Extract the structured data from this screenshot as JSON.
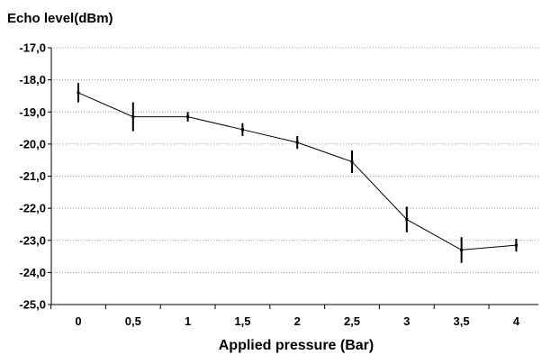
{
  "chart_data": {
    "type": "line",
    "title": "",
    "ylabel": "Echo level(dBm)",
    "xlabel": "Applied pressure (Bar)",
    "x": [
      0,
      0.5,
      1,
      1.5,
      2,
      2.5,
      3,
      3.5,
      4
    ],
    "x_tick_labels": [
      "0",
      "0,5",
      "1",
      "1,5",
      "2",
      "2,5",
      "3",
      "3,5",
      "4"
    ],
    "ylim": [
      -25,
      -17
    ],
    "y_ticks": [
      -17,
      -18,
      -19,
      -20,
      -21,
      -22,
      -23,
      -24,
      -25
    ],
    "y_tick_labels": [
      "-17,0",
      "-18,0",
      "-19,0",
      "-20,0",
      "-21,0",
      "-22,0",
      "-23,0",
      "-24,0",
      "-25,0"
    ],
    "grid": "horizontal-dotted",
    "legend": "none",
    "series": [
      {
        "values": [
          -18.4,
          -19.15,
          -19.15,
          -19.55,
          -19.95,
          -20.55,
          -22.35,
          -23.3,
          -23.15
        ],
        "error": [
          0.3,
          0.45,
          0.15,
          0.2,
          0.2,
          0.35,
          0.4,
          0.4,
          0.2
        ]
      }
    ],
    "colors": {
      "line": "#000000",
      "grid": "#999999",
      "axis": "#000000"
    }
  }
}
